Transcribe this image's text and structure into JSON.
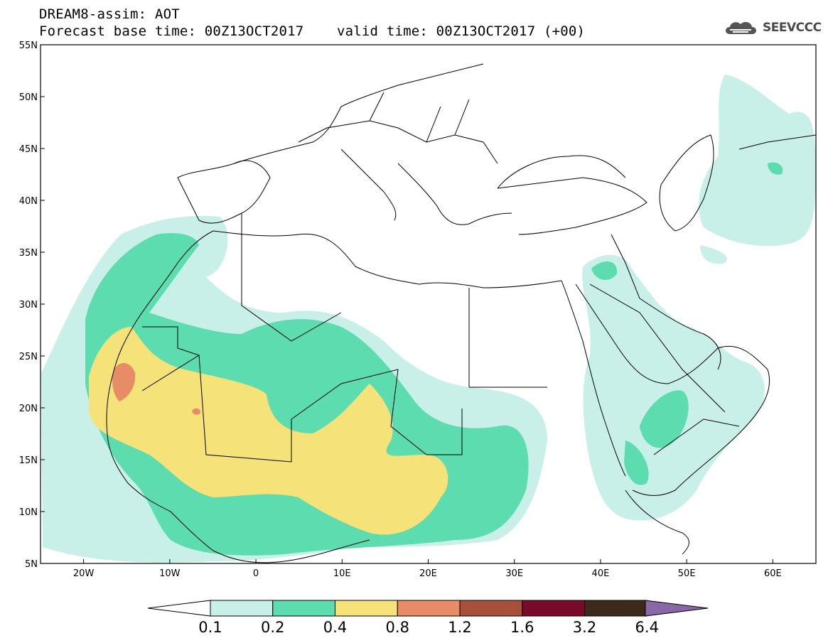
{
  "header": {
    "title": "DREAM8-assim: AOT",
    "subtitle": "Forecast base time: 00Z13OCT2017    valid time: 00Z13OCT2017 (+00)"
  },
  "logo": {
    "text": "SEEVCCC",
    "icon": "cloud-icon"
  },
  "map": {
    "lat_range": [
      5,
      55
    ],
    "lon_range": [
      -25,
      65
    ],
    "lat_labels": [
      "55N",
      "50N",
      "45N",
      "40N",
      "35N",
      "30N",
      "25N",
      "20N",
      "15N",
      "10N",
      "5N"
    ],
    "lon_labels": [
      "20W",
      "10W",
      "0",
      "10E",
      "20E",
      "30E",
      "40E",
      "50E",
      "60E"
    ]
  },
  "colorbar": {
    "levels": [
      "0.1",
      "0.2",
      "0.4",
      "0.8",
      "1.2",
      "1.6",
      "3.2",
      "6.4"
    ],
    "colors": [
      "#c8f0e8",
      "#5ddcb0",
      "#f5e37a",
      "#e88c68",
      "#a8503a",
      "#7a0a2a",
      "#3e2a1a",
      "#8a68a8"
    ]
  }
}
